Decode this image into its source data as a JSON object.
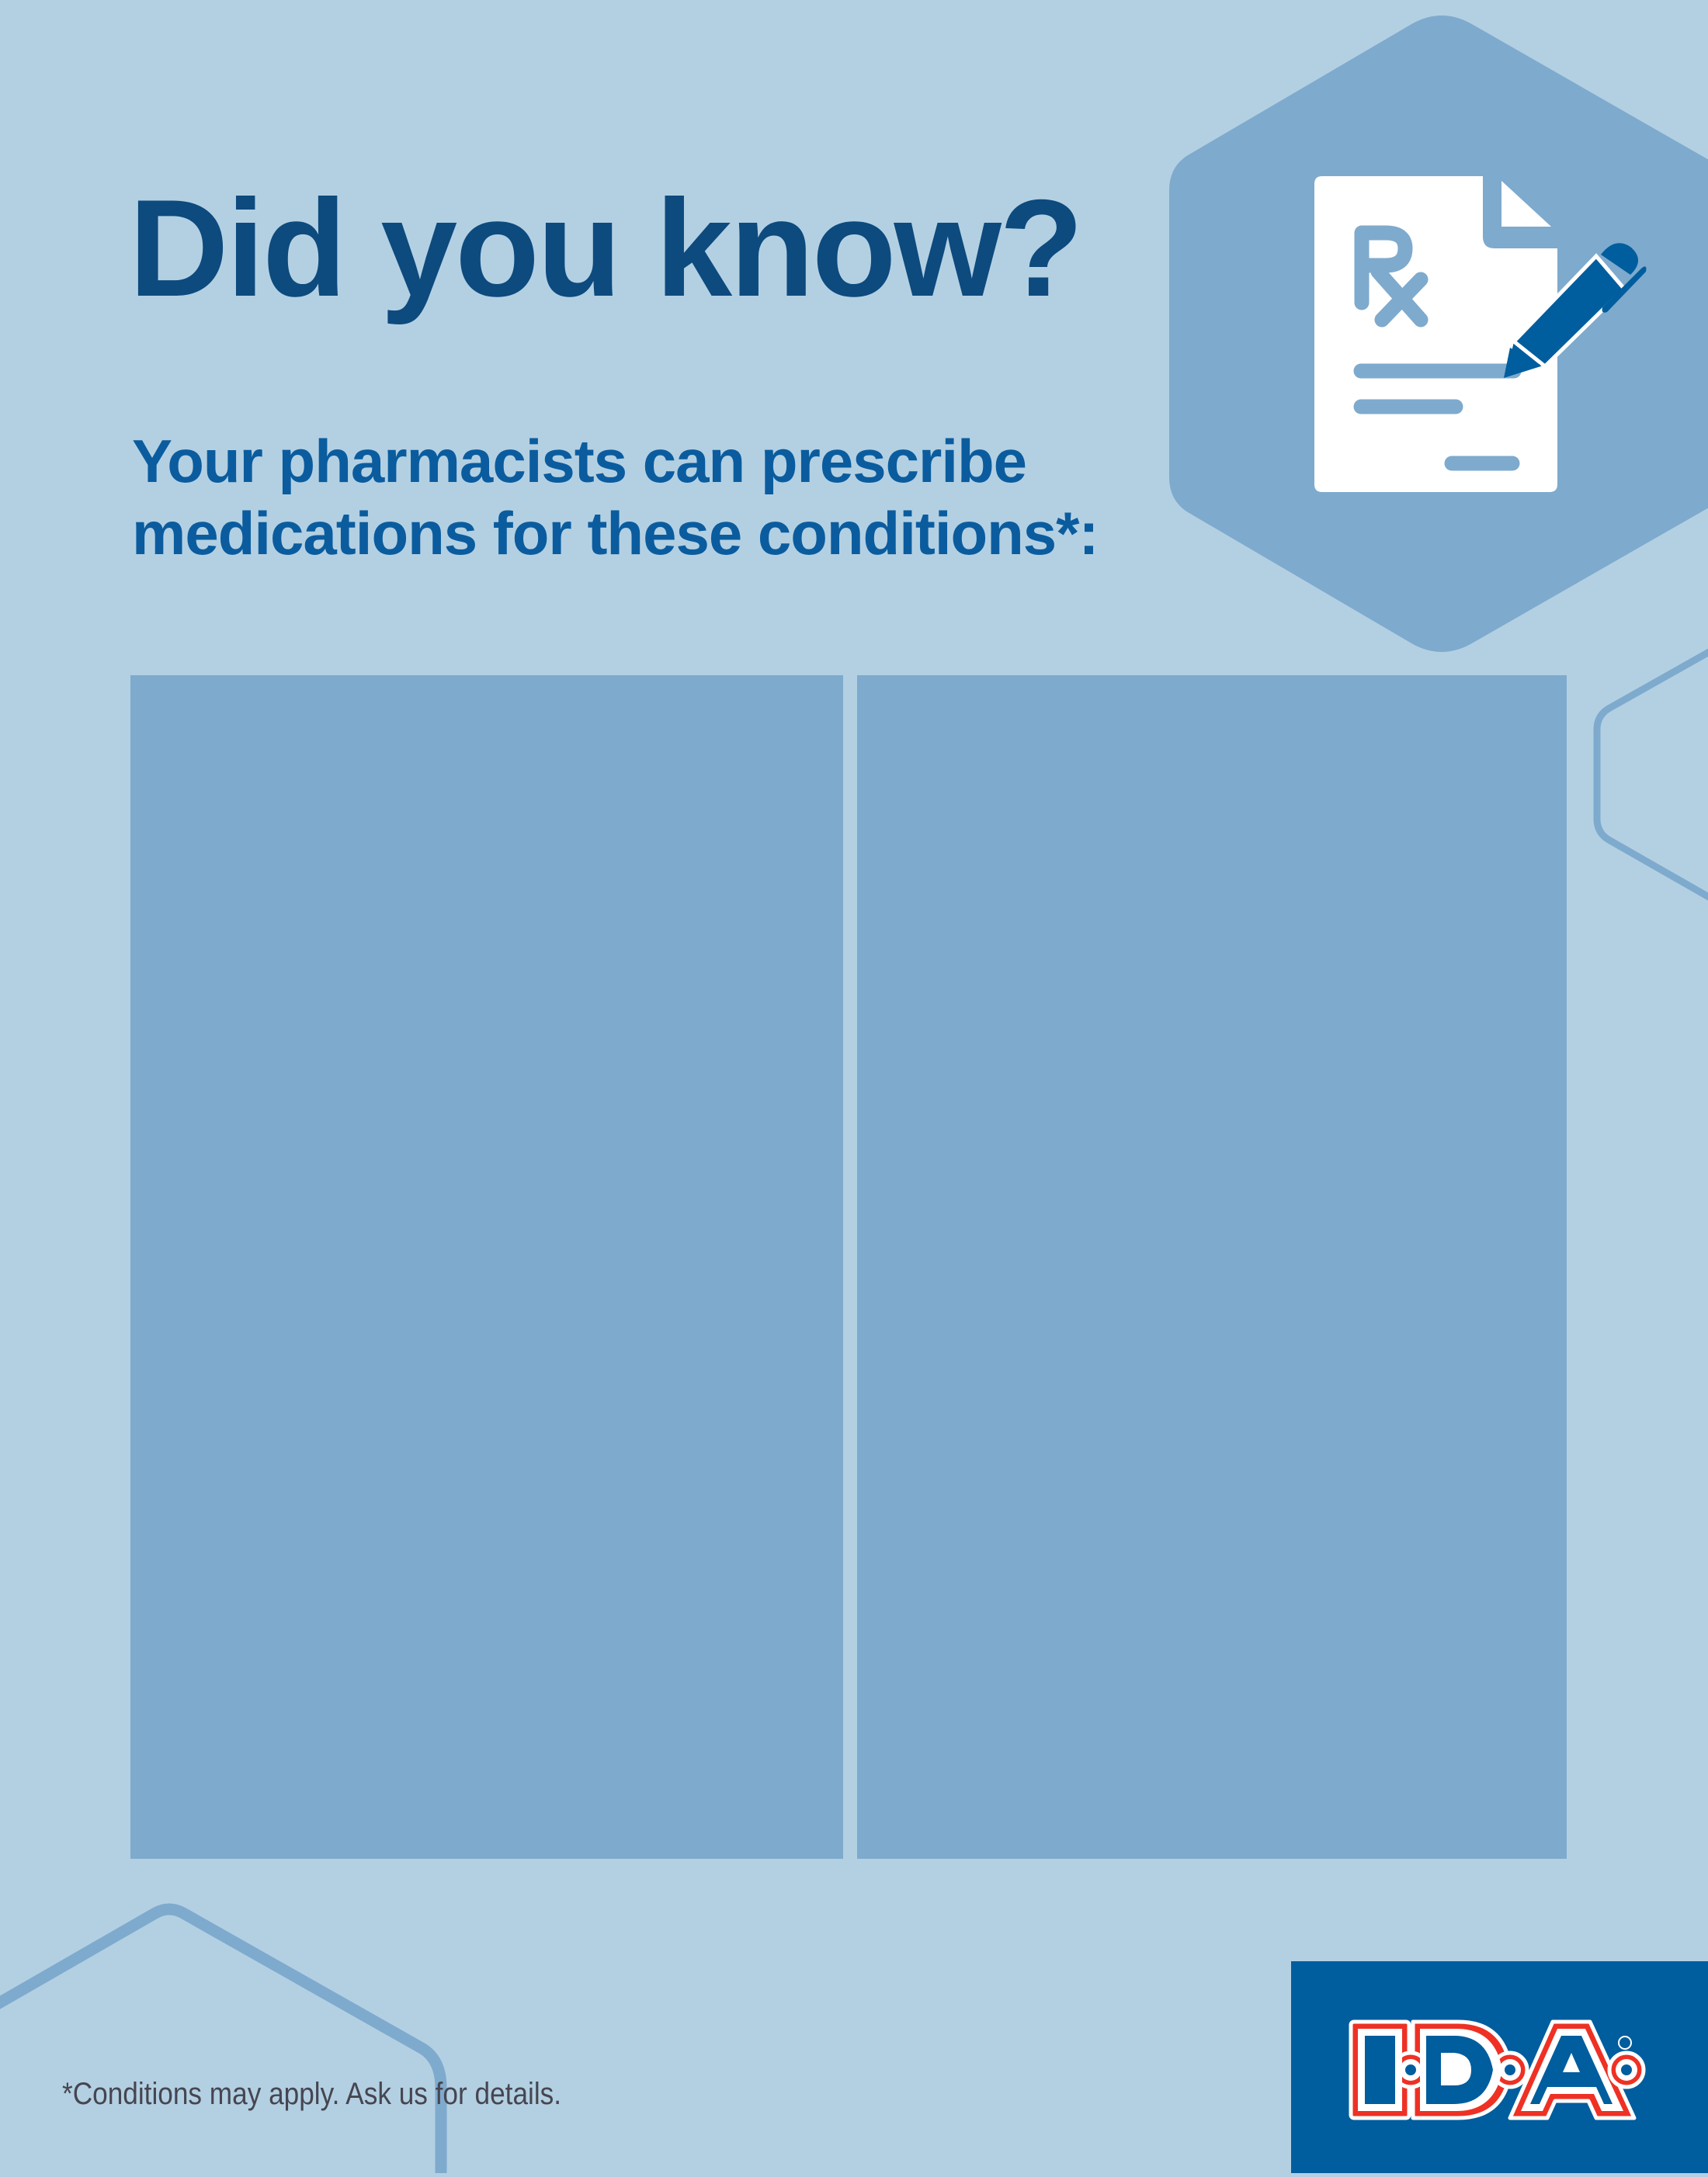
{
  "header": {
    "title": "Did you know?",
    "subtitle_line1": "Your pharmacists can prescribe",
    "subtitle_line2": "medications for these conditions*:"
  },
  "icon": {
    "name": "prescription-document-pen-icon"
  },
  "panels": [
    {
      "content": ""
    },
    {
      "content": ""
    }
  ],
  "footer": {
    "note": "*Conditions may apply. Ask us for details.",
    "logo_text": "I·D·A®"
  },
  "colors": {
    "background": "#b3d0e3",
    "panel": "#7eaacd",
    "title": "#0d4a7e",
    "subtitle": "#0a5c9e",
    "brand_blue": "#005d9e",
    "brand_red": "#ee3124"
  }
}
